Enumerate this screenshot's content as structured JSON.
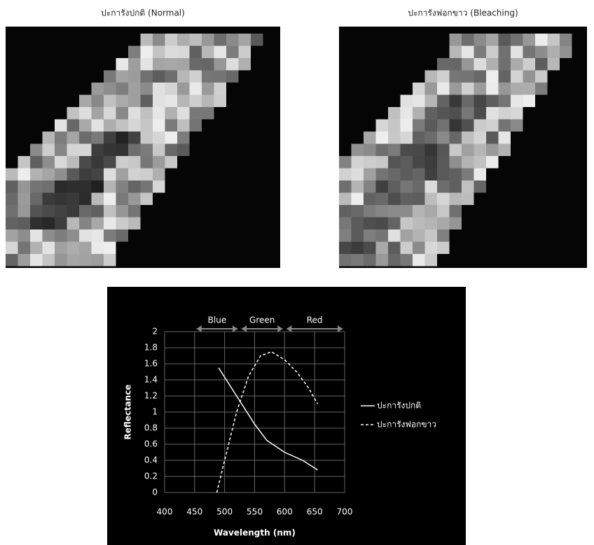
{
  "images": [
    {
      "caption": "ปะการังปกติ (Normal)"
    },
    {
      "caption": "ปะการังฟอกขาว (Bleaching)"
    }
  ],
  "chart_data": {
    "type": "line",
    "xlabel": "Wavelength (nm)",
    "ylabel": "Reflectance",
    "xlim": [
      400,
      700
    ],
    "xticks": [
      400,
      450,
      500,
      550,
      600,
      650,
      700
    ],
    "ylim": [
      0,
      2
    ],
    "yticks": [
      0,
      0.2,
      0.4,
      0.6,
      0.8,
      1,
      1.2,
      1.4,
      1.6,
      1.8,
      2
    ],
    "grid": true,
    "bands": [
      {
        "name": "Blue",
        "start": 450,
        "end": 525
      },
      {
        "name": "Green",
        "start": 525,
        "end": 600
      },
      {
        "name": "Red",
        "start": 600,
        "end": 700
      }
    ],
    "series": [
      {
        "name": "ปะการังปกติ",
        "color": "#ffffff",
        "dash": "solid",
        "x": [
          490,
          520,
          550,
          570,
          600,
          630,
          655
        ],
        "values": [
          1.55,
          1.2,
          0.85,
          0.65,
          0.5,
          0.4,
          0.28
        ]
      },
      {
        "name": "ปะการังฟอกขาว",
        "color": "#ffffff",
        "dash": "dashed",
        "x": [
          487,
          500,
          520,
          540,
          560,
          578,
          600,
          620,
          640,
          655
        ],
        "values": [
          0,
          0.4,
          1.0,
          1.45,
          1.7,
          1.75,
          1.65,
          1.5,
          1.3,
          1.1
        ]
      }
    ]
  }
}
